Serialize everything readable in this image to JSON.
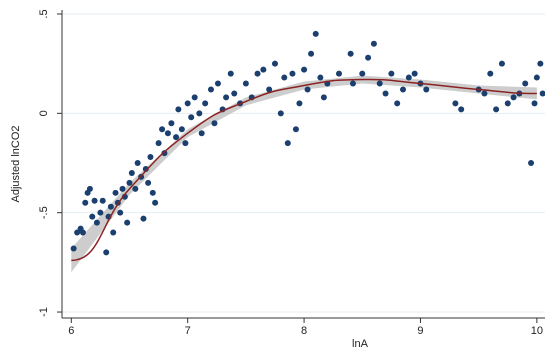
{
  "chart_data": {
    "type": "scatter",
    "x_label": "lnA",
    "y_label": "Adjusted lnCO2",
    "xlim": [
      5.92,
      10.07
    ],
    "ylim": [
      -1.03,
      0.52
    ],
    "xticks": [
      6,
      7,
      8,
      9,
      10
    ],
    "yticks": [
      {
        "value": 0.5,
        "label": ".5"
      },
      0,
      {
        "value": -0.5,
        "label": "-.5"
      },
      -1
    ],
    "grid": true,
    "color": "#1b3f6e",
    "x": [
      6.02,
      6.05,
      6.08,
      6.1,
      6.12,
      6.14,
      6.16,
      6.18,
      6.2,
      6.22,
      6.25,
      6.27,
      6.3,
      6.32,
      6.34,
      6.36,
      6.38,
      6.4,
      6.42,
      6.44,
      6.46,
      6.48,
      6.5,
      6.52,
      6.55,
      6.57,
      6.6,
      6.62,
      6.64,
      6.66,
      6.68,
      6.7,
      6.72,
      6.75,
      6.78,
      6.8,
      6.83,
      6.86,
      6.9,
      6.92,
      6.95,
      6.98,
      7.0,
      7.03,
      7.06,
      7.1,
      7.12,
      7.15,
      7.2,
      7.23,
      7.26,
      7.3,
      7.33,
      7.37,
      7.4,
      7.45,
      7.5,
      7.55,
      7.6,
      7.65,
      7.7,
      7.75,
      7.8,
      7.83,
      7.86,
      7.9,
      7.93,
      7.96,
      8.0,
      8.03,
      8.06,
      8.1,
      8.14,
      8.17,
      8.2,
      8.3,
      8.4,
      8.42,
      8.5,
      8.55,
      8.6,
      8.65,
      8.7,
      8.75,
      8.8,
      8.85,
      8.9,
      8.95,
      9.0,
      9.05,
      9.3,
      9.35,
      9.5,
      9.55,
      9.6,
      9.65,
      9.7,
      9.75,
      9.8,
      9.85,
      9.9,
      9.95,
      9.98,
      10.0,
      10.03,
      10.05
    ],
    "values": [
      -0.68,
      -0.6,
      -0.58,
      -0.6,
      -0.45,
      -0.4,
      -0.38,
      -0.52,
      -0.44,
      -0.55,
      -0.5,
      -0.44,
      -0.7,
      -0.52,
      -0.47,
      -0.6,
      -0.4,
      -0.45,
      -0.5,
      -0.38,
      -0.42,
      -0.55,
      -0.35,
      -0.3,
      -0.38,
      -0.25,
      -0.32,
      -0.53,
      -0.28,
      -0.35,
      -0.22,
      -0.4,
      -0.45,
      -0.15,
      -0.08,
      -0.2,
      -0.1,
      -0.05,
      -0.12,
      0.02,
      -0.08,
      -0.15,
      0.05,
      -0.02,
      0.08,
      0.0,
      -0.1,
      0.05,
      0.12,
      -0.05,
      0.15,
      0.02,
      0.08,
      0.2,
      0.1,
      0.05,
      0.15,
      0.08,
      0.2,
      0.22,
      0.12,
      0.25,
      0.0,
      0.18,
      -0.15,
      0.2,
      -0.08,
      0.05,
      0.22,
      0.12,
      0.3,
      0.4,
      0.18,
      0.08,
      0.15,
      0.2,
      0.3,
      0.15,
      0.2,
      0.28,
      0.35,
      0.15,
      0.1,
      0.2,
      0.05,
      0.12,
      0.18,
      0.2,
      0.15,
      0.12,
      0.05,
      0.02,
      0.12,
      0.1,
      0.2,
      0.02,
      0.25,
      0.05,
      0.08,
      0.1,
      0.15,
      -0.25,
      0.05,
      0.18,
      0.25,
      0.1
    ],
    "fit": {
      "color": "#8b2323",
      "band_color": "#b8b8b8",
      "x": [
        6,
        6.5,
        7,
        7.5,
        8,
        8.5,
        9,
        9.5,
        10
      ],
      "values": [
        -0.74,
        -0.38,
        -0.1,
        0.06,
        0.14,
        0.17,
        0.15,
        0.12,
        0.1
      ],
      "ci_lower": [
        -0.8,
        -0.41,
        -0.12,
        0.04,
        0.12,
        0.15,
        0.13,
        0.1,
        0.07
      ],
      "ci_upper": [
        -0.68,
        -0.35,
        -0.08,
        0.08,
        0.16,
        0.19,
        0.17,
        0.14,
        0.13
      ]
    }
  }
}
